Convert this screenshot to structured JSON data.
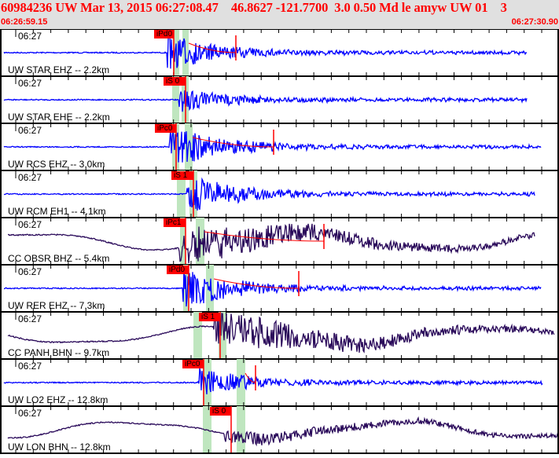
{
  "header": {
    "title": "60984236 UW Mar 13, 2015 06:27:08.47    46.8627 -121.7700  3.0 0.50 Md le amyw UW 01    3",
    "start_time": "06:26:59.15",
    "end_time": "06:27:30.90"
  },
  "colors": {
    "header_bg": "#e0e0e0",
    "header_text": "#ff0000",
    "short_period_trace": "#0000ff",
    "broadband_trace": "#2a0a5a",
    "pick": "#ff0000",
    "window_band": "#bfe6bf"
  },
  "traces": [
    {
      "time_label": "06:27",
      "station": "UW STAR EHZ -- 2.2km",
      "pick": "iPd0"
    },
    {
      "time_label": "06:27",
      "station": "UW STAR EHE -- 2.2km",
      "pick": "iS 0"
    },
    {
      "time_label": "06:27",
      "station": "UW RCS EHZ -- 3.0km",
      "pick": "iPc0"
    },
    {
      "time_label": "06:27",
      "station": "UW RCM EH1 -- 4.1km",
      "pick": "iS 1"
    },
    {
      "time_label": "06:27",
      "station": "CC OBSR BHZ -- 5.4km",
      "pick": "iPc1"
    },
    {
      "time_label": "06:27",
      "station": "UW RER EHZ -- 7.3km",
      "pick": "iPd0"
    },
    {
      "time_label": "06:27",
      "station": "CC PANH BHN -- 9.7km",
      "pick": "iS 1"
    },
    {
      "time_label": "06:27",
      "station": "UW LO2 EHZ -- 12.8km",
      "pick": "iPc0"
    },
    {
      "time_label": "06:27",
      "station": "UW LON BHN -- 12.8km",
      "pick": "iS 0"
    }
  ]
}
